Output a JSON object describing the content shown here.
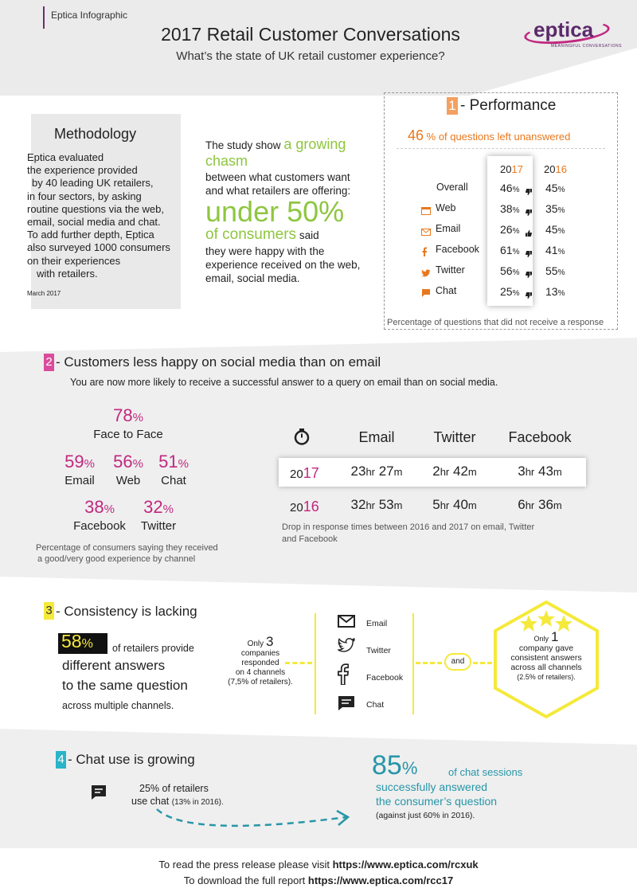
{
  "header": {
    "tag": "Eptica Infographic",
    "title": "2017 Retail Customer Conversations",
    "subtitle": "What’s the state of UK retail customer experience?",
    "logo": "eptica",
    "logo_tagline": "MEANINGFUL CONVERSATIONS"
  },
  "methodology": {
    "heading": "Methodology",
    "lines": [
      "Eptica evaluated",
      "the experience provided",
      "by 40 leading UK retailers,",
      "in four sectors, by asking",
      "routine questions via the web,",
      "email, social media and chat.",
      "To add further depth, Eptica",
      "also surveyed 1000 consumers",
      "on their experiences",
      "with retailers."
    ],
    "date": "March 2017"
  },
  "study": {
    "intro": "The study show",
    "accent": "a growing",
    "accent2": "chasm",
    "line1": "between what customers want",
    "line2": "and what retailers are offering:",
    "big": "under 50%",
    "of": "of consumers",
    "said": "said",
    "line3": "they were happy with the",
    "line4": "experience received on the web,",
    "line5": "email, social media."
  },
  "performance": {
    "number": "1",
    "heading": "- Performance",
    "stat_value": "46",
    "stat_text": "% of questions left unanswered",
    "year_a_prefix": "20",
    "year_a_suffix": "17",
    "year_b_prefix": "20",
    "year_b_suffix": "16",
    "caption": "Percentage of questions that did not receive a response",
    "rows": [
      {
        "label": "Overall",
        "icon": "none",
        "v2017": "46",
        "v2016": "45",
        "trend": "down"
      },
      {
        "label": "Web",
        "icon": "web-icon",
        "v2017": "38",
        "v2016": "35",
        "trend": "down"
      },
      {
        "label": "Email",
        "icon": "email-icon",
        "v2017": "26",
        "v2016": "45",
        "trend": "up"
      },
      {
        "label": "Facebook",
        "icon": "facebook-icon",
        "v2017": "61",
        "v2016": "41",
        "trend": "down"
      },
      {
        "label": "Twitter",
        "icon": "twitter-icon",
        "v2017": "56",
        "v2016": "55",
        "trend": "down"
      },
      {
        "label": "Chat",
        "icon": "chat-icon",
        "v2017": "25",
        "v2016": "13",
        "trend": "down"
      }
    ]
  },
  "section2": {
    "number": "2",
    "heading": "- Customers less happy on social media than on email",
    "subheading": "You are now more likely to receive a successful answer to a query on email than on social media.",
    "stats": [
      {
        "value": "78",
        "label": "Face to Face"
      },
      {
        "value": "59",
        "label": "Email"
      },
      {
        "value": "56",
        "label": "Web"
      },
      {
        "value": "51",
        "label": "Chat"
      },
      {
        "value": "38",
        "label": "Facebook"
      },
      {
        "value": "32",
        "label": "Twitter"
      }
    ],
    "caption_line1": "Percentage of consumers saying they received",
    "caption_line2": "a good/very good experience by channel",
    "columns": [
      "Email",
      "Twitter",
      "Facebook"
    ],
    "y2017": {
      "prefix": "20",
      "suffix": "17",
      "values": [
        [
          "23",
          "hr",
          "27",
          "m"
        ],
        [
          "2",
          "hr",
          "42",
          "m"
        ],
        [
          "3",
          "hr",
          "43",
          "m"
        ]
      ]
    },
    "y2016": {
      "prefix": "20",
      "suffix": "16",
      "values": [
        [
          "32",
          "hr",
          "53",
          "m"
        ],
        [
          "5",
          "hr",
          "40",
          "m"
        ],
        [
          "6",
          "hr",
          "36",
          "m"
        ]
      ]
    },
    "times_caption1": "Drop in response times between 2016 and 2017 on email, Twitter",
    "times_caption2": "and Facebook"
  },
  "section3": {
    "number": "3",
    "heading": "- Consistency is lacking",
    "big": "58",
    "big_pct": "%",
    "text1": "of retailers provide",
    "text2": "different answers",
    "text3": "to the same question",
    "text4": "across multiple channels.",
    "only_pre": "Only",
    "only_num": "3",
    "only_l1": "companies",
    "only_l2": "responded",
    "only_l3": "on 4 channels",
    "only_l4": "(7,5% of retailers).",
    "channels": [
      "Email",
      "Twitter",
      "Facebook",
      "Chat"
    ],
    "and": "and",
    "hex_only": "Only",
    "hex_num": "1",
    "hex_l1": "company gave",
    "hex_l2": "consistent answers",
    "hex_l3": "across all channels",
    "hex_l4": "(2.5% of retailers)."
  },
  "section4": {
    "number": "4",
    "heading": "- Chat use is growing",
    "left1": "25% of retailers",
    "left2": "use chat",
    "left2b": "(13% in 2016).",
    "big": "85",
    "pct": "%",
    "right1": "of chat sessions",
    "right2": "successfully answered",
    "right3": "the consumer’s question",
    "right4": "(against just 60% in 2016)."
  },
  "footer": {
    "press_text": "To read the press release please visit",
    "press_url": "https://www.eptica.com/rcxuk",
    "report_text": "To download the full report",
    "report_url": "https://www.eptica.com/rcc17"
  },
  "colors": {
    "magenta": "#c0287f",
    "orange": "#e8781e",
    "green": "#8ec63f",
    "teal": "#2796a8",
    "yellow": "#f5e93a"
  }
}
